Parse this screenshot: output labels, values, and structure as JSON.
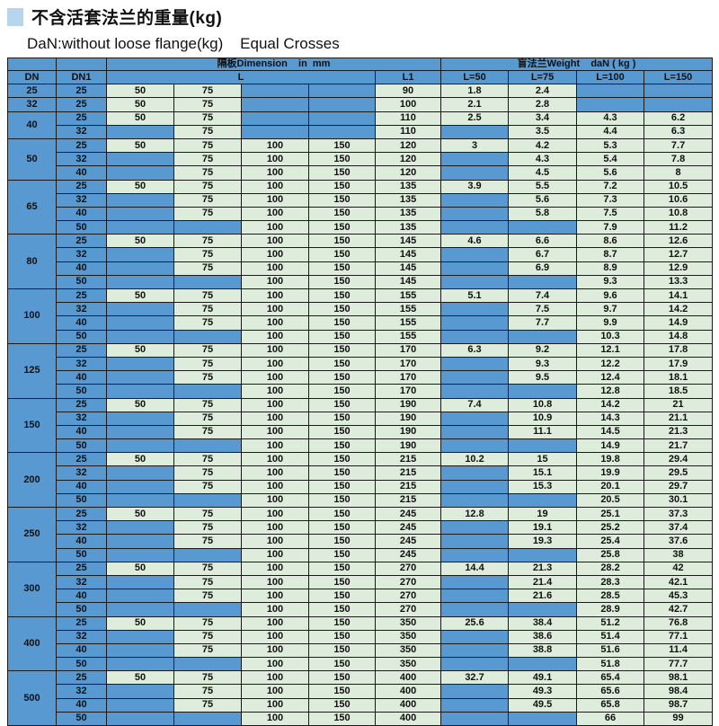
{
  "page": {
    "title": "不含活套法兰的重量(kg)",
    "subtitle": "DaN:without loose flange(kg)    Equal Crosses"
  },
  "colors": {
    "header_blue": "#5899d2",
    "cell_green": "#deecdb",
    "title_square": "#b7d5ed",
    "border": "#1a1a1a"
  },
  "table": {
    "header": {
      "dimension_group": "隔板Dimension    in  mm",
      "weight_group": "盲法兰Weight    daN ( kg )",
      "dn": "DN",
      "dn1": "DN1",
      "l": "L",
      "l1": "L1",
      "weights": [
        "L=50",
        "L=75",
        "L=100",
        "L=150"
      ]
    },
    "groups": [
      {
        "dn": "25",
        "rows": [
          {
            "dn1": "25",
            "l": [
              "50",
              "75",
              "",
              ""
            ],
            "l1": "90",
            "w": [
              "1.8",
              "2.4",
              "",
              ""
            ]
          }
        ]
      },
      {
        "dn": "32",
        "rows": [
          {
            "dn1": "25",
            "l": [
              "50",
              "75",
              "",
              ""
            ],
            "l1": "100",
            "w": [
              "2.1",
              "2.8",
              "",
              ""
            ]
          }
        ]
      },
      {
        "dn": "40",
        "rows": [
          {
            "dn1": "25",
            "l": [
              "50",
              "75",
              "",
              ""
            ],
            "l1": "110",
            "w": [
              "2.5",
              "3.4",
              "4.3",
              "6.2"
            ]
          },
          {
            "dn1": "32",
            "l": [
              "",
              "75",
              "",
              ""
            ],
            "l1": "110",
            "w": [
              "",
              "3.5",
              "4.4",
              "6.3"
            ]
          }
        ]
      },
      {
        "dn": "50",
        "rows": [
          {
            "dn1": "25",
            "l": [
              "50",
              "75",
              "100",
              "150"
            ],
            "l1": "120",
            "w": [
              "3",
              "4.2",
              "5.3",
              "7.7"
            ]
          },
          {
            "dn1": "32",
            "l": [
              "",
              "75",
              "100",
              "150"
            ],
            "l1": "120",
            "w": [
              "",
              "4.3",
              "5.4",
              "7.8"
            ]
          },
          {
            "dn1": "40",
            "l": [
              "",
              "75",
              "100",
              "150"
            ],
            "l1": "120",
            "w": [
              "",
              "4.5",
              "5.6",
              "8"
            ]
          }
        ]
      },
      {
        "dn": "65",
        "rows": [
          {
            "dn1": "25",
            "l": [
              "50",
              "75",
              "100",
              "150"
            ],
            "l1": "135",
            "w": [
              "3.9",
              "5.5",
              "7.2",
              "10.5"
            ]
          },
          {
            "dn1": "32",
            "l": [
              "",
              "75",
              "100",
              "150"
            ],
            "l1": "135",
            "w": [
              "",
              "5.6",
              "7.3",
              "10.6"
            ]
          },
          {
            "dn1": "40",
            "l": [
              "",
              "75",
              "100",
              "150"
            ],
            "l1": "135",
            "w": [
              "",
              "5.8",
              "7.5",
              "10.8"
            ]
          },
          {
            "dn1": "50",
            "l": [
              "",
              "",
              "100",
              "150"
            ],
            "l1": "135",
            "w": [
              "",
              "",
              "7.9",
              "11.2"
            ]
          }
        ]
      },
      {
        "dn": "80",
        "rows": [
          {
            "dn1": "25",
            "l": [
              "50",
              "75",
              "100",
              "150"
            ],
            "l1": "145",
            "w": [
              "4.6",
              "6.6",
              "8.6",
              "12.6"
            ]
          },
          {
            "dn1": "32",
            "l": [
              "",
              "75",
              "100",
              "150"
            ],
            "l1": "145",
            "w": [
              "",
              "6.7",
              "8.7",
              "12.7"
            ]
          },
          {
            "dn1": "40",
            "l": [
              "",
              "75",
              "100",
              "150"
            ],
            "l1": "145",
            "w": [
              "",
              "6.9",
              "8.9",
              "12.9"
            ]
          },
          {
            "dn1": "50",
            "l": [
              "",
              "",
              "100",
              "150"
            ],
            "l1": "145",
            "w": [
              "",
              "",
              "9.3",
              "13.3"
            ]
          }
        ]
      },
      {
        "dn": "100",
        "rows": [
          {
            "dn1": "25",
            "l": [
              "50",
              "75",
              "100",
              "150"
            ],
            "l1": "155",
            "w": [
              "5.1",
              "7.4",
              "9.6",
              "14.1"
            ]
          },
          {
            "dn1": "32",
            "l": [
              "",
              "75",
              "100",
              "150"
            ],
            "l1": "155",
            "w": [
              "",
              "7.5",
              "9.7",
              "14.2"
            ]
          },
          {
            "dn1": "40",
            "l": [
              "",
              "75",
              "100",
              "150"
            ],
            "l1": "155",
            "w": [
              "",
              "7.7",
              "9.9",
              "14.9"
            ]
          },
          {
            "dn1": "50",
            "l": [
              "",
              "",
              "100",
              "150"
            ],
            "l1": "155",
            "w": [
              "",
              "",
              "10.3",
              "14.8"
            ]
          }
        ]
      },
      {
        "dn": "125",
        "rows": [
          {
            "dn1": "25",
            "l": [
              "50",
              "75",
              "100",
              "150"
            ],
            "l1": "170",
            "w": [
              "6.3",
              "9.2",
              "12.1",
              "17.8"
            ]
          },
          {
            "dn1": "32",
            "l": [
              "",
              "75",
              "100",
              "150"
            ],
            "l1": "170",
            "w": [
              "",
              "9.3",
              "12.2",
              "17.9"
            ]
          },
          {
            "dn1": "40",
            "l": [
              "",
              "75",
              "100",
              "150"
            ],
            "l1": "170",
            "w": [
              "",
              "9.5",
              "12.4",
              "18.1"
            ]
          },
          {
            "dn1": "50",
            "l": [
              "",
              "",
              "100",
              "150"
            ],
            "l1": "170",
            "w": [
              "",
              "",
              "12.8",
              "18.5"
            ]
          }
        ]
      },
      {
        "dn": "150",
        "rows": [
          {
            "dn1": "25",
            "l": [
              "50",
              "75",
              "100",
              "150"
            ],
            "l1": "190",
            "w": [
              "7.4",
              "10.8",
              "14.2",
              "21"
            ]
          },
          {
            "dn1": "32",
            "l": [
              "",
              "75",
              "100",
              "150"
            ],
            "l1": "190",
            "w": [
              "",
              "10.9",
              "14.3",
              "21.1"
            ]
          },
          {
            "dn1": "40",
            "l": [
              "",
              "75",
              "100",
              "150"
            ],
            "l1": "190",
            "w": [
              "",
              "11.1",
              "14.5",
              "21.3"
            ]
          },
          {
            "dn1": "50",
            "l": [
              "",
              "",
              "100",
              "150"
            ],
            "l1": "190",
            "w": [
              "",
              "",
              "14.9",
              "21.7"
            ]
          }
        ]
      },
      {
        "dn": "200",
        "rows": [
          {
            "dn1": "25",
            "l": [
              "50",
              "75",
              "100",
              "150"
            ],
            "l1": "215",
            "w": [
              "10.2",
              "15",
              "19.8",
              "29.4"
            ]
          },
          {
            "dn1": "32",
            "l": [
              "",
              "75",
              "100",
              "150"
            ],
            "l1": "215",
            "w": [
              "",
              "15.1",
              "19.9",
              "29.5"
            ]
          },
          {
            "dn1": "40",
            "l": [
              "",
              "75",
              "100",
              "150"
            ],
            "l1": "215",
            "w": [
              "",
              "15.3",
              "20.1",
              "29.7"
            ]
          },
          {
            "dn1": "50",
            "l": [
              "",
              "",
              "100",
              "150"
            ],
            "l1": "215",
            "w": [
              "",
              "",
              "20.5",
              "30.1"
            ]
          }
        ]
      },
      {
        "dn": "250",
        "rows": [
          {
            "dn1": "25",
            "l": [
              "50",
              "75",
              "100",
              "150"
            ],
            "l1": "245",
            "w": [
              "12.8",
              "19",
              "25.1",
              "37.3"
            ]
          },
          {
            "dn1": "32",
            "l": [
              "",
              "75",
              "100",
              "150"
            ],
            "l1": "245",
            "w": [
              "",
              "19.1",
              "25.2",
              "37.4"
            ]
          },
          {
            "dn1": "40",
            "l": [
              "",
              "75",
              "100",
              "150"
            ],
            "l1": "245",
            "w": [
              "",
              "19.3",
              "25.4",
              "37.6"
            ]
          },
          {
            "dn1": "50",
            "l": [
              "",
              "",
              "100",
              "150"
            ],
            "l1": "245",
            "w": [
              "",
              "",
              "25.8",
              "38"
            ]
          }
        ]
      },
      {
        "dn": "300",
        "rows": [
          {
            "dn1": "25",
            "l": [
              "50",
              "75",
              "100",
              "150"
            ],
            "l1": "270",
            "w": [
              "14.4",
              "21.3",
              "28.2",
              "42"
            ]
          },
          {
            "dn1": "32",
            "l": [
              "",
              "75",
              "100",
              "150"
            ],
            "l1": "270",
            "w": [
              "",
              "21.4",
              "28.3",
              "42.1"
            ]
          },
          {
            "dn1": "40",
            "l": [
              "",
              "75",
              "100",
              "150"
            ],
            "l1": "270",
            "w": [
              "",
              "21.6",
              "28.5",
              "45.3"
            ]
          },
          {
            "dn1": "50",
            "l": [
              "",
              "",
              "100",
              "150"
            ],
            "l1": "270",
            "w": [
              "",
              "",
              "28.9",
              "42.7"
            ]
          }
        ]
      },
      {
        "dn": "400",
        "rows": [
          {
            "dn1": "25",
            "l": [
              "50",
              "75",
              "100",
              "150"
            ],
            "l1": "350",
            "w": [
              "25.6",
              "38.4",
              "51.2",
              "76.8"
            ]
          },
          {
            "dn1": "32",
            "l": [
              "",
              "75",
              "100",
              "150"
            ],
            "l1": "350",
            "w": [
              "",
              "38.6",
              "51.4",
              "77.1"
            ]
          },
          {
            "dn1": "40",
            "l": [
              "",
              "75",
              "100",
              "150"
            ],
            "l1": "350",
            "w": [
              "",
              "38.8",
              "51.6",
              "11.4"
            ]
          },
          {
            "dn1": "50",
            "l": [
              "",
              "",
              "100",
              "150"
            ],
            "l1": "350",
            "w": [
              "",
              "",
              "51.8",
              "77.7"
            ]
          }
        ]
      },
      {
        "dn": "500",
        "rows": [
          {
            "dn1": "25",
            "l": [
              "50",
              "75",
              "100",
              "150"
            ],
            "l1": "400",
            "w": [
              "32.7",
              "49.1",
              "65.4",
              "98.1"
            ]
          },
          {
            "dn1": "32",
            "l": [
              "",
              "75",
              "100",
              "150"
            ],
            "l1": "400",
            "w": [
              "",
              "49.3",
              "65.6",
              "98.4"
            ]
          },
          {
            "dn1": "40",
            "l": [
              "",
              "75",
              "100",
              "150"
            ],
            "l1": "400",
            "w": [
              "",
              "49.5",
              "65.8",
              "98.7"
            ]
          },
          {
            "dn1": "50",
            "l": [
              "",
              "",
              "100",
              "150"
            ],
            "l1": "400",
            "w": [
              "",
              "",
              "66",
              "99"
            ]
          }
        ]
      }
    ]
  }
}
